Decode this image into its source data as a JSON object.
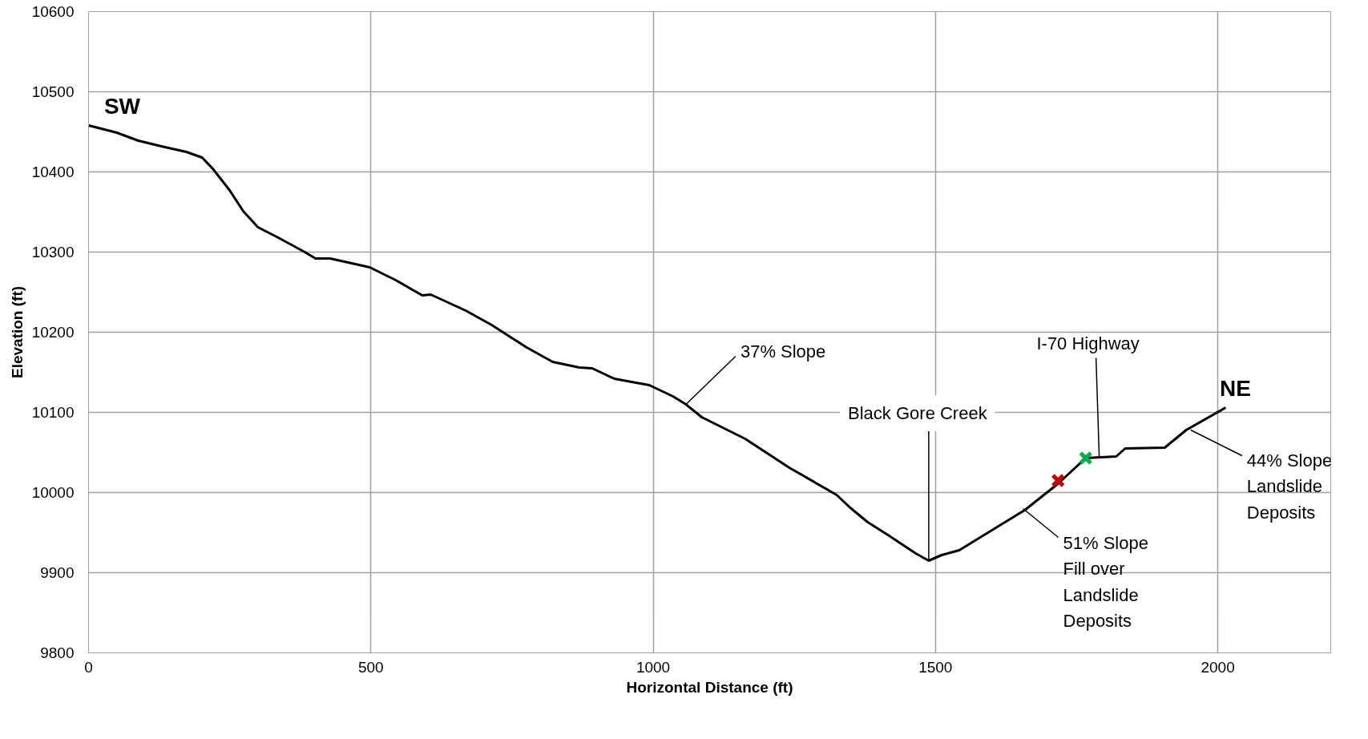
{
  "chart_data": {
    "type": "line",
    "xlabel": "Horizontal Distance (ft)",
    "ylabel": "Elevation (ft)",
    "xlim": [
      0,
      2200
    ],
    "xticks": [
      0,
      500,
      1000,
      1500,
      2000
    ],
    "ylim": [
      9800,
      10600
    ],
    "yticks": [
      9800,
      9900,
      10000,
      10100,
      10200,
      10300,
      10400,
      10500,
      10600
    ],
    "grid": true,
    "series": [
      {
        "color": "#000000",
        "marker": "none",
        "line_style": "solid",
        "x": [
          0,
          50,
          88,
          135,
          173,
          201,
          220,
          250,
          274,
          300,
          336,
          383,
          402,
          428,
          498,
          544,
          591,
          606,
          668,
          714,
          776,
          822,
          869,
          892,
          931,
          993,
          1035,
          1058,
          1086,
          1163,
          1241,
          1325,
          1349,
          1380,
          1418,
          1465,
          1488,
          1511,
          1542,
          1658,
          1717,
          1766,
          1820,
          1836,
          1906,
          1944,
          2014
        ],
        "values": [
          10458,
          10449,
          10439,
          10431,
          10425,
          10418,
          10404,
          10377,
          10351,
          10331,
          10318,
          10300,
          10292,
          10292,
          10281,
          10265,
          10246,
          10247,
          10227,
          10209,
          10181,
          10163,
          10156,
          10155,
          10142,
          10134,
          10120,
          10110,
          10094,
          10067,
          10031,
          9997,
          9981,
          9963,
          9946,
          9924,
          9915,
          9922,
          9928,
          9978,
          10011,
          10043,
          10045,
          10055,
          10056,
          10078,
          10106
        ]
      },
      {
        "type": "scatter",
        "color": "#c00000",
        "marker": "cross",
        "x": [
          1717
        ],
        "values": [
          10015
        ]
      },
      {
        "type": "scatter",
        "color": "#00b050",
        "marker": "cross",
        "x": [
          1766
        ],
        "values": [
          10043
        ]
      }
    ],
    "annotations": [
      {
        "text": "SW",
        "x": 0,
        "y": 10458
      },
      {
        "text": "37% Slope",
        "x": 1058,
        "y": 10110
      },
      {
        "text": "Black Gore Creek",
        "x": 1488,
        "y": 9915
      },
      {
        "text": "I-70 Highway",
        "x": 1790,
        "y": 10044
      },
      {
        "text": "NE",
        "x": 2014,
        "y": 10106
      },
      {
        "text": "51% Slope\nFill over\nLandslide\nDeposits",
        "x": 1655,
        "y": 9980
      },
      {
        "text": "44% Slope\nLandslide\nDeposits",
        "x": 1952,
        "y": 10078
      }
    ]
  }
}
